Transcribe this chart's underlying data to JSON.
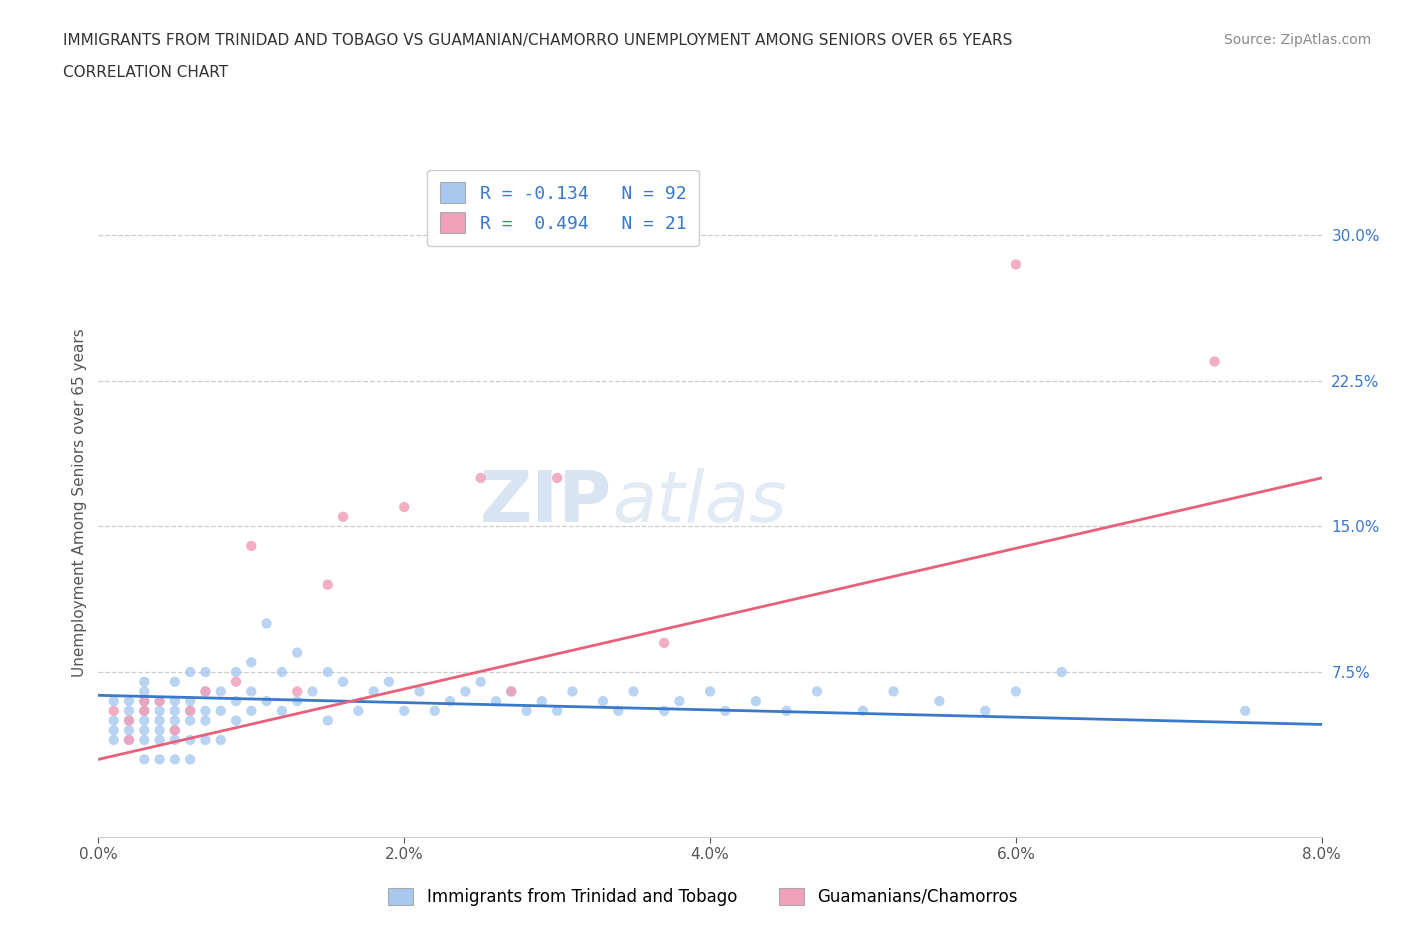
{
  "title_line1": "IMMIGRANTS FROM TRINIDAD AND TOBAGO VS GUAMANIAN/CHAMORRO UNEMPLOYMENT AMONG SENIORS OVER 65 YEARS",
  "title_line2": "CORRELATION CHART",
  "source": "Source: ZipAtlas.com",
  "ylabel": "Unemployment Among Seniors over 65 years",
  "xlim": [
    0.0,
    0.08
  ],
  "ylim": [
    -0.01,
    0.335
  ],
  "xticks": [
    0.0,
    0.02,
    0.04,
    0.06,
    0.08
  ],
  "xticklabels": [
    "0.0%",
    "2.0%",
    "4.0%",
    "6.0%",
    "8.0%"
  ],
  "yticks_right": [
    0.075,
    0.15,
    0.225,
    0.3
  ],
  "yticklabels_right": [
    "7.5%",
    "15.0%",
    "22.5%",
    "30.0%"
  ],
  "hlines": [
    0.075,
    0.15,
    0.225,
    0.3
  ],
  "blue_color": "#a8c8f0",
  "pink_color": "#f0a0b8",
  "blue_line_color": "#3a78c9",
  "pink_line_color": "#e8607a",
  "legend_R1": "-0.134",
  "legend_N1": "92",
  "legend_R2": "0.494",
  "legend_N2": "21",
  "legend_label1": "Immigrants from Trinidad and Tobago",
  "legend_label2": "Guamanians/Chamorros",
  "watermark_zip": "ZIP",
  "watermark_atlas": "atlas",
  "blue_scatter_x": [
    0.001,
    0.001,
    0.001,
    0.001,
    0.002,
    0.002,
    0.002,
    0.002,
    0.002,
    0.003,
    0.003,
    0.003,
    0.003,
    0.003,
    0.003,
    0.003,
    0.003,
    0.004,
    0.004,
    0.004,
    0.004,
    0.004,
    0.004,
    0.005,
    0.005,
    0.005,
    0.005,
    0.005,
    0.005,
    0.005,
    0.006,
    0.006,
    0.006,
    0.006,
    0.006,
    0.006,
    0.007,
    0.007,
    0.007,
    0.007,
    0.007,
    0.008,
    0.008,
    0.008,
    0.009,
    0.009,
    0.009,
    0.01,
    0.01,
    0.01,
    0.011,
    0.011,
    0.012,
    0.012,
    0.013,
    0.013,
    0.014,
    0.015,
    0.015,
    0.016,
    0.017,
    0.018,
    0.019,
    0.02,
    0.021,
    0.022,
    0.023,
    0.024,
    0.025,
    0.026,
    0.027,
    0.028,
    0.029,
    0.03,
    0.031,
    0.033,
    0.034,
    0.035,
    0.037,
    0.038,
    0.04,
    0.041,
    0.043,
    0.045,
    0.047,
    0.05,
    0.052,
    0.055,
    0.058,
    0.06,
    0.063,
    0.075
  ],
  "blue_scatter_y": [
    0.04,
    0.045,
    0.05,
    0.06,
    0.04,
    0.045,
    0.05,
    0.055,
    0.06,
    0.03,
    0.04,
    0.045,
    0.05,
    0.055,
    0.06,
    0.065,
    0.07,
    0.03,
    0.04,
    0.045,
    0.05,
    0.055,
    0.06,
    0.03,
    0.04,
    0.045,
    0.05,
    0.055,
    0.06,
    0.07,
    0.03,
    0.04,
    0.05,
    0.055,
    0.06,
    0.075,
    0.04,
    0.05,
    0.055,
    0.065,
    0.075,
    0.04,
    0.055,
    0.065,
    0.05,
    0.06,
    0.075,
    0.055,
    0.065,
    0.08,
    0.06,
    0.1,
    0.055,
    0.075,
    0.06,
    0.085,
    0.065,
    0.05,
    0.075,
    0.07,
    0.055,
    0.065,
    0.07,
    0.055,
    0.065,
    0.055,
    0.06,
    0.065,
    0.07,
    0.06,
    0.065,
    0.055,
    0.06,
    0.055,
    0.065,
    0.06,
    0.055,
    0.065,
    0.055,
    0.06,
    0.065,
    0.055,
    0.06,
    0.055,
    0.065,
    0.055,
    0.065,
    0.06,
    0.055,
    0.065,
    0.075,
    0.055
  ],
  "pink_scatter_x": [
    0.001,
    0.002,
    0.002,
    0.003,
    0.003,
    0.004,
    0.005,
    0.006,
    0.007,
    0.009,
    0.01,
    0.013,
    0.015,
    0.016,
    0.02,
    0.025,
    0.027,
    0.03,
    0.037,
    0.06,
    0.073
  ],
  "pink_scatter_y": [
    0.055,
    0.04,
    0.05,
    0.055,
    0.06,
    0.06,
    0.045,
    0.055,
    0.065,
    0.07,
    0.14,
    0.065,
    0.12,
    0.155,
    0.16,
    0.175,
    0.065,
    0.175,
    0.09,
    0.285,
    0.235
  ],
  "blue_trend_x0": 0.0,
  "blue_trend_x1": 0.08,
  "blue_trend_y0": 0.063,
  "blue_trend_y1": 0.048,
  "pink_trend_x0": 0.0,
  "pink_trend_x1": 0.08,
  "pink_trend_y0": 0.03,
  "pink_trend_y1": 0.175
}
